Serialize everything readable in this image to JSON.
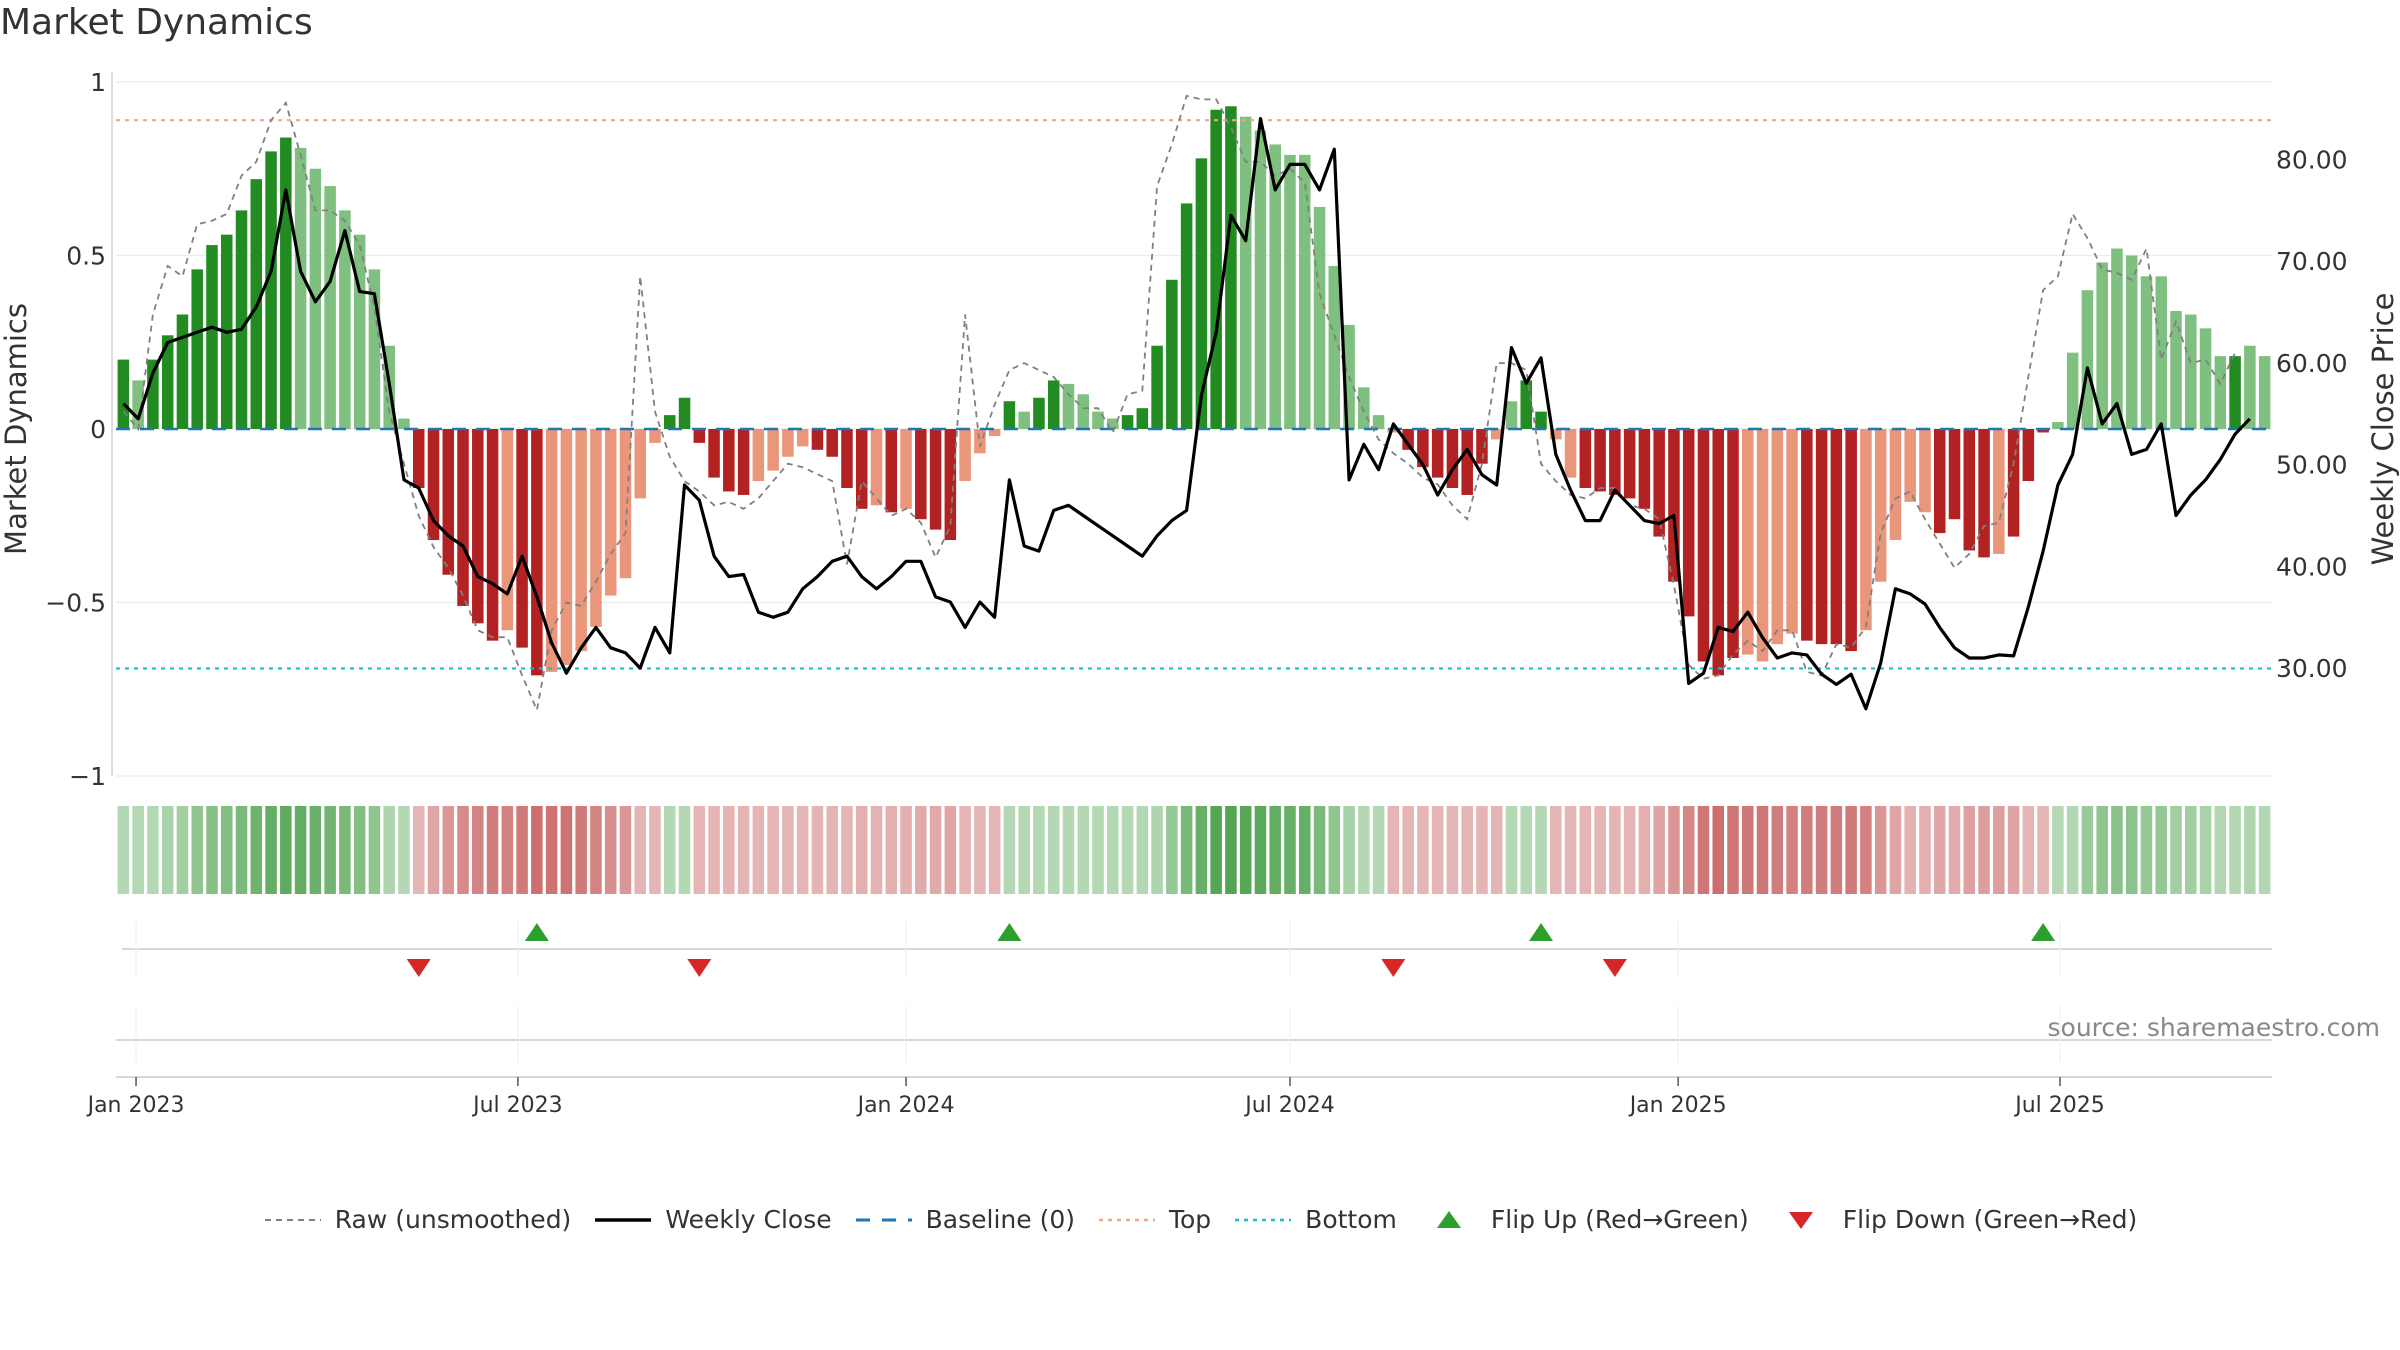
{
  "chart_data": {
    "type": "bar",
    "title": "Market Dynamics",
    "ylabel": "Market Dynamics",
    "y2label": "Weekly Close Price",
    "ylim": [
      -1,
      1
    ],
    "y2lim": [
      19.4,
      87.6
    ],
    "y_ticks": [
      1,
      0.5,
      0,
      -0.5,
      -1
    ],
    "y_tick_labels": [
      "1",
      "0.5",
      "0",
      "−0.5",
      "−1"
    ],
    "y2_ticks": [
      30,
      40,
      50,
      60,
      70,
      80
    ],
    "y2_tick_labels": [
      "30.00",
      "40.00",
      "50.00",
      "60.00",
      "70.00",
      "80.00"
    ],
    "x_tick_labels": [
      "Jan 2023",
      "Jul 2023",
      "Jan 2024",
      "Jul 2024",
      "Jan 2025",
      "Jul 2025"
    ],
    "x_tick_dates": [
      "2023-01-01",
      "2023-07-01",
      "2024-01-01",
      "2024-07-01",
      "2025-01-01",
      "2025-07-01"
    ],
    "first_week": "2022-12-26",
    "top_line": 0.89,
    "bottom_line": -0.69,
    "colors": {
      "strong_green": "#228b22",
      "light_green": "#7fbf7f",
      "strong_red": "#b22222",
      "light_red": "#e9967a",
      "close_line": "#000000",
      "raw_line": "#808080",
      "baseline": "#1f77b4",
      "top": "#f4a582",
      "bottom": "#17becf",
      "flip_up": "#2ca02c",
      "flip_down": "#d62728"
    },
    "series": [
      {
        "name": "Market Dynamics",
        "values": [
          0.2,
          0.14,
          0.2,
          0.27,
          0.33,
          0.46,
          0.53,
          0.56,
          0.63,
          0.72,
          0.8,
          0.84,
          0.81,
          0.75,
          0.7,
          0.63,
          0.56,
          0.46,
          0.24,
          0.03,
          -0.17,
          -0.32,
          -0.42,
          -0.51,
          -0.56,
          -0.61,
          -0.58,
          -0.63,
          -0.71,
          -0.7,
          -0.68,
          -0.64,
          -0.57,
          -0.48,
          -0.43,
          -0.2,
          -0.04,
          0.04,
          0.09,
          -0.04,
          -0.14,
          -0.18,
          -0.19,
          -0.15,
          -0.12,
          -0.08,
          -0.05,
          -0.06,
          -0.08,
          -0.17,
          -0.23,
          -0.22,
          -0.24,
          -0.23,
          -0.26,
          -0.29,
          -0.32,
          -0.15,
          -0.07,
          -0.02,
          0.08,
          0.05,
          0.09,
          0.14,
          0.13,
          0.1,
          0.05,
          0.03,
          0.04,
          0.06,
          0.24,
          0.43,
          0.65,
          0.78,
          0.92,
          0.93,
          0.9,
          0.86,
          0.82,
          0.79,
          0.79,
          0.64,
          0.47,
          0.3,
          0.12,
          0.04,
          -0.01,
          -0.06,
          -0.11,
          -0.14,
          -0.17,
          -0.19,
          -0.1,
          -0.03,
          0.08,
          0.14,
          0.05,
          -0.03,
          -0.14,
          -0.17,
          -0.18,
          -0.19,
          -0.2,
          -0.23,
          -0.31,
          -0.44,
          -0.54,
          -0.67,
          -0.71,
          -0.66,
          -0.65,
          -0.67,
          -0.62,
          -0.59,
          -0.61,
          -0.62,
          -0.62,
          -0.64,
          -0.58,
          -0.44,
          -0.32,
          -0.21,
          -0.24,
          -0.3,
          -0.26,
          -0.35,
          -0.37,
          -0.36,
          -0.31,
          -0.15,
          -0.01,
          0.02,
          0.22,
          0.4,
          0.48,
          0.52,
          0.5,
          0.44,
          0.44,
          0.34,
          0.33,
          0.29,
          0.21,
          0.21,
          0.24,
          0.21
        ],
        "strength": [
          "s",
          "l",
          "s",
          "s",
          "s",
          "s",
          "s",
          "s",
          "s",
          "s",
          "s",
          "s",
          "l",
          "l",
          "l",
          "l",
          "l",
          "l",
          "l",
          "l",
          "s",
          "s",
          "s",
          "s",
          "s",
          "s",
          "l",
          "s",
          "s",
          "l",
          "l",
          "l",
          "l",
          "l",
          "l",
          "l",
          "l",
          "s",
          "s",
          "s",
          "s",
          "s",
          "s",
          "l",
          "l",
          "l",
          "l",
          "s",
          "s",
          "s",
          "s",
          "l",
          "s",
          "l",
          "s",
          "s",
          "s",
          "l",
          "l",
          "l",
          "s",
          "l",
          "s",
          "s",
          "l",
          "l",
          "l",
          "l",
          "s",
          "s",
          "s",
          "s",
          "s",
          "s",
          "s",
          "s",
          "l",
          "l",
          "l",
          "l",
          "l",
          "l",
          "l",
          "l",
          "l",
          "l",
          "l",
          "s",
          "s",
          "s",
          "s",
          "s",
          "s",
          "l",
          "l",
          "s",
          "s",
          "l",
          "l",
          "s",
          "s",
          "s",
          "s",
          "s",
          "s",
          "s",
          "s",
          "s",
          "s",
          "s",
          "l",
          "l",
          "l",
          "l",
          "s",
          "s",
          "s",
          "s",
          "l",
          "l",
          "l",
          "l",
          "l",
          "s",
          "s",
          "s",
          "s",
          "l",
          "s",
          "s",
          "s",
          "l",
          "l",
          "l",
          "l",
          "l",
          "l",
          "l",
          "l",
          "l",
          "l",
          "l",
          "l",
          "s",
          "l"
        ]
      },
      {
        "name": "Raw (unsmoothed)",
        "values": [
          0.05,
          0.0,
          0.33,
          0.47,
          0.44,
          0.59,
          0.6,
          0.62,
          0.73,
          0.77,
          0.89,
          0.94,
          0.79,
          0.63,
          0.63,
          0.6,
          0.53,
          0.35,
          0.05,
          -0.1,
          -0.25,
          -0.34,
          -0.4,
          -0.48,
          -0.58,
          -0.6,
          -0.6,
          -0.71,
          -0.81,
          -0.58,
          -0.5,
          -0.51,
          -0.44,
          -0.36,
          -0.3,
          0.44,
          0.05,
          -0.08,
          -0.15,
          -0.18,
          -0.22,
          -0.21,
          -0.23,
          -0.2,
          -0.15,
          -0.1,
          -0.11,
          -0.13,
          -0.15,
          -0.39,
          -0.15,
          -0.2,
          -0.25,
          -0.23,
          -0.27,
          -0.37,
          -0.28,
          0.33,
          -0.05,
          0.07,
          0.17,
          0.19,
          0.17,
          0.15,
          0.1,
          0.06,
          0.06,
          -0.01,
          0.1,
          0.11,
          0.7,
          0.82,
          0.96,
          0.95,
          0.95,
          0.87,
          0.77,
          0.77,
          0.73,
          0.75,
          0.71,
          0.39,
          0.27,
          0.15,
          0.05,
          -0.03,
          -0.07,
          -0.1,
          -0.14,
          -0.16,
          -0.22,
          -0.26,
          -0.1,
          0.19,
          0.19,
          0.17,
          -0.1,
          -0.15,
          -0.19,
          -0.2,
          -0.17,
          -0.17,
          -0.22,
          -0.23,
          -0.26,
          -0.45,
          -0.68,
          -0.72,
          -0.71,
          -0.65,
          -0.61,
          -0.64,
          -0.58,
          -0.58,
          -0.7,
          -0.71,
          -0.62,
          -0.63,
          -0.57,
          -0.3,
          -0.2,
          -0.18,
          -0.26,
          -0.33,
          -0.4,
          -0.36,
          -0.28,
          -0.27,
          -0.1,
          0.15,
          0.4,
          0.44,
          0.62,
          0.55,
          0.46,
          0.45,
          0.43,
          0.52,
          0.2,
          0.31,
          0.19,
          0.2,
          0.13,
          0.22
        ]
      },
      {
        "name": "Weekly Close",
        "values": [
          56.0,
          54.5,
          59.0,
          62.0,
          62.5,
          63.0,
          63.5,
          63.0,
          63.3,
          65.5,
          69.0,
          77.0,
          69.0,
          66.0,
          68.0,
          73.0,
          67.0,
          66.8,
          58.0,
          48.5,
          47.7,
          44.5,
          43.0,
          42.0,
          39.0,
          38.3,
          37.3,
          41.0,
          37.0,
          32.5,
          29.5,
          32.0,
          34.0,
          32.0,
          31.5,
          30.0,
          34.0,
          31.5,
          48.0,
          46.5,
          41.0,
          39.0,
          39.2,
          35.5,
          35.0,
          35.5,
          37.8,
          39.0,
          40.5,
          41.0,
          39.0,
          37.8,
          39.0,
          40.5,
          40.5,
          37.0,
          36.5,
          34.0,
          36.5,
          35.0,
          48.5,
          42.0,
          41.5,
          45.5,
          46.0,
          45.0,
          44.0,
          43.0,
          42.0,
          41.0,
          43.0,
          44.5,
          45.5,
          56.8,
          63.0,
          74.5,
          72.0,
          84.0,
          77.0,
          79.5,
          79.5,
          77.0,
          81.0,
          48.5,
          52.0,
          49.5,
          54.0,
          52.0,
          50.0,
          47.0,
          49.5,
          51.5,
          49.0,
          48.0,
          61.5,
          58.0,
          60.5,
          51.0,
          47.5,
          44.5,
          44.5,
          47.5,
          46.0,
          44.5,
          44.2,
          45.0,
          28.5,
          29.5,
          34.0,
          33.6,
          35.5,
          33.0,
          31.0,
          31.5,
          31.3,
          29.4,
          28.4,
          29.4,
          26.0,
          30.5,
          37.8,
          37.3,
          36.3,
          34.0,
          32.0,
          31.0,
          31.0,
          31.3,
          31.2,
          36.0,
          41.5,
          48.0,
          51.0,
          59.5,
          54.0,
          56.0,
          51.0,
          51.5,
          54.0,
          45.0,
          47.0,
          48.5,
          50.5,
          53.0,
          54.5
        ]
      }
    ],
    "flip_up_weeks": [
      28,
      60,
      96,
      130
    ],
    "flip_down_weeks": [
      20,
      39,
      86,
      101
    ],
    "legend": [
      {
        "label": "Raw (unsmoothed)",
        "kind": "dashed-gray"
      },
      {
        "label": "Weekly Close",
        "kind": "solid-black"
      },
      {
        "label": "Baseline (0)",
        "kind": "dashed-blue"
      },
      {
        "label": "Top",
        "kind": "dotted-orange"
      },
      {
        "label": "Bottom",
        "kind": "dotted-cyan"
      },
      {
        "label": "Flip Up (Red→Green)",
        "kind": "triangle-up"
      },
      {
        "label": "Flip Down (Green→Red)",
        "kind": "triangle-down"
      }
    ],
    "source": "source: sharemaestro.com"
  }
}
